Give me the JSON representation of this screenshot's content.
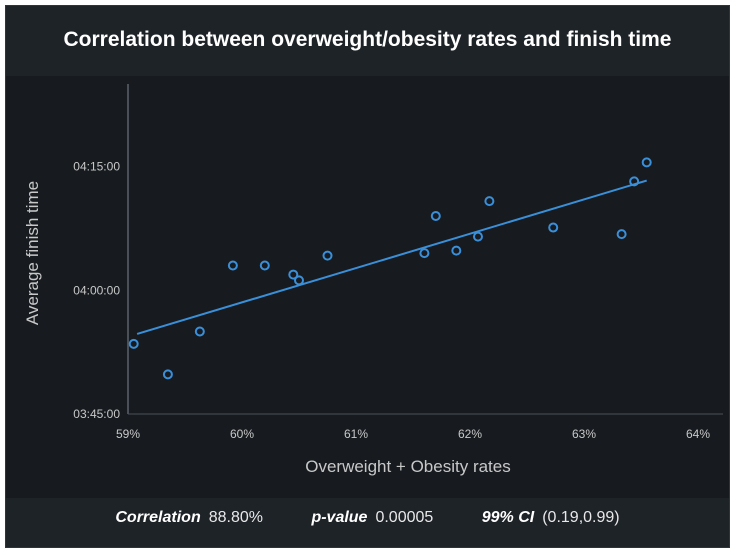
{
  "chart_data": {
    "type": "scatter",
    "title": "Correlation between overweight/obesity rates and finish time",
    "xlabel": "Overweight + Obesity rates",
    "ylabel": "Average finish time",
    "xlim": [
      59,
      64
    ],
    "ylim": [
      225,
      265
    ],
    "x_ticks": [
      59,
      60,
      61,
      62,
      63,
      64
    ],
    "x_tick_labels": [
      "59%",
      "60%",
      "61%",
      "62%",
      "63%",
      "64%"
    ],
    "y_ticks": [
      225,
      240,
      255
    ],
    "y_tick_labels": [
      "03:45:00",
      "04:00:00",
      "04:15:00"
    ],
    "points": [
      {
        "x": 59.05,
        "y": 233.5
      },
      {
        "x": 59.35,
        "y": 229.8
      },
      {
        "x": 59.63,
        "y": 235.0
      },
      {
        "x": 59.92,
        "y": 243.0
      },
      {
        "x": 60.2,
        "y": 243.0
      },
      {
        "x": 60.45,
        "y": 241.9
      },
      {
        "x": 60.5,
        "y": 241.2
      },
      {
        "x": 60.75,
        "y": 244.2
      },
      {
        "x": 61.6,
        "y": 244.5
      },
      {
        "x": 61.7,
        "y": 249.0
      },
      {
        "x": 61.88,
        "y": 244.8
      },
      {
        "x": 62.07,
        "y": 246.5
      },
      {
        "x": 62.17,
        "y": 250.8
      },
      {
        "x": 62.73,
        "y": 247.6
      },
      {
        "x": 63.33,
        "y": 246.8
      },
      {
        "x": 63.44,
        "y": 253.2
      },
      {
        "x": 63.55,
        "y": 255.5
      }
    ],
    "trendline": {
      "x": [
        59.08,
        63.55
      ],
      "y": [
        234.7,
        253.3
      ]
    },
    "grid": false,
    "colors": {
      "points": "#3a8fd9",
      "trendline": "#3a8fd9",
      "text": "#c8c8c8",
      "axis": "#4a5058"
    }
  },
  "stats": {
    "correlation_label": "Correlation",
    "correlation_value": "88.80%",
    "pvalue_label": "p-value",
    "pvalue_value": "0.00005",
    "ci_label": "99% CI",
    "ci_value": "(0.19,0.99)"
  }
}
